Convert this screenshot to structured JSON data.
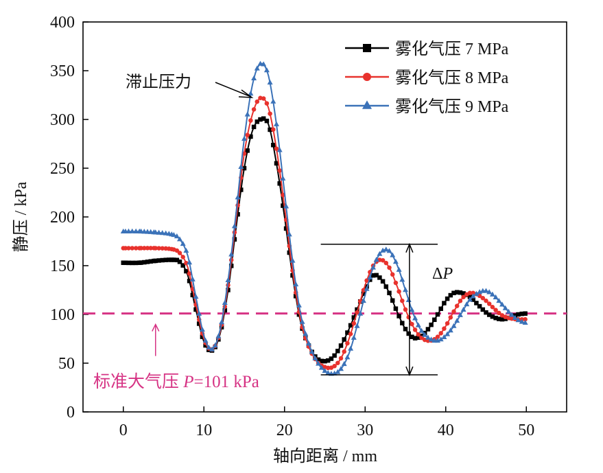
{
  "chart_data": {
    "type": "line",
    "title": "",
    "xlabel": "轴向距离 / mm",
    "ylabel": "静压 / kPa",
    "xlim": [
      -5,
      55
    ],
    "ylim": [
      0,
      400
    ],
    "xticks": [
      0,
      10,
      20,
      30,
      40,
      50
    ],
    "yticks": [
      0,
      50,
      100,
      150,
      200,
      250,
      300,
      350,
      400
    ],
    "grid": false,
    "legend_position": "top-right",
    "series": [
      {
        "name": "雾化气压 7 MPa",
        "color": "#000000",
        "marker": "square",
        "x": [
          0,
          2,
          4,
          6,
          7,
          8,
          9,
          10,
          11,
          12,
          13,
          14,
          15,
          16,
          17,
          18,
          19,
          20,
          21,
          22,
          23,
          24,
          25,
          26,
          27,
          28,
          29,
          30,
          31,
          32,
          33,
          34,
          35,
          36,
          37,
          38,
          39,
          40,
          41,
          42,
          43,
          44,
          45,
          46,
          47,
          48,
          49,
          50
        ],
        "y": [
          153,
          153,
          155,
          156,
          154,
          140,
          105,
          72,
          63,
          80,
          125,
          190,
          250,
          288,
          300,
          295,
          255,
          200,
          140,
          92,
          68,
          55,
          52,
          56,
          68,
          85,
          105,
          125,
          140,
          136,
          122,
          102,
          85,
          76,
          78,
          87,
          100,
          114,
          122,
          122,
          118,
          110,
          102,
          97,
          95,
          97,
          100,
          101
        ]
      },
      {
        "name": "雾化气压 8 MPa",
        "color": "#e8322d",
        "marker": "circle",
        "x": [
          0,
          2,
          4,
          6,
          7,
          8,
          9,
          10,
          11,
          12,
          13,
          14,
          15,
          16,
          17,
          18,
          19,
          20,
          21,
          22,
          23,
          24,
          25,
          26,
          27,
          28,
          29,
          30,
          31,
          32,
          33,
          34,
          35,
          36,
          37,
          38,
          39,
          40,
          41,
          42,
          43,
          44,
          45,
          46,
          47,
          48,
          49,
          50
        ],
        "y": [
          168,
          168,
          168,
          167,
          163,
          148,
          110,
          75,
          64,
          82,
          130,
          198,
          265,
          305,
          322,
          312,
          270,
          210,
          145,
          94,
          67,
          52,
          46,
          46,
          55,
          75,
          102,
          130,
          150,
          156,
          148,
          128,
          105,
          87,
          76,
          73,
          77,
          88,
          103,
          116,
          122,
          120,
          114,
          106,
          99,
          96,
          95,
          95
        ]
      },
      {
        "name": "雾化气压 9 MPa",
        "color": "#3b72b8",
        "marker": "triangle",
        "x": [
          0,
          2,
          4,
          6,
          7,
          8,
          9,
          10,
          11,
          12,
          13,
          14,
          15,
          16,
          17,
          18,
          19,
          20,
          21,
          22,
          23,
          24,
          25,
          26,
          27,
          28,
          29,
          30,
          31,
          32,
          33,
          34,
          35,
          36,
          37,
          38,
          39,
          40,
          41,
          42,
          43,
          44,
          45,
          46,
          47,
          48,
          49,
          50
        ],
        "y": [
          185,
          185,
          184,
          182,
          177,
          160,
          118,
          78,
          64,
          84,
          135,
          205,
          280,
          335,
          357,
          345,
          295,
          225,
          155,
          100,
          70,
          52,
          42,
          39,
          44,
          60,
          88,
          120,
          148,
          164,
          165,
          150,
          125,
          100,
          83,
          75,
          73,
          78,
          88,
          102,
          115,
          122,
          124,
          119,
          110,
          101,
          94,
          91
        ]
      }
    ],
    "reference_line": {
      "y": 101,
      "label": "标准大气压 P=101 kPa",
      "label_italic_part": "P",
      "color": "#d63384"
    },
    "annotations": {
      "stagnation_label": "滞止压力",
      "delta_label": "ΔP",
      "delta_bracket": {
        "x_start": 24.5,
        "x_end": 39,
        "y_top": 172,
        "y_bottom": 38,
        "arrow_x": 35.5
      }
    }
  }
}
